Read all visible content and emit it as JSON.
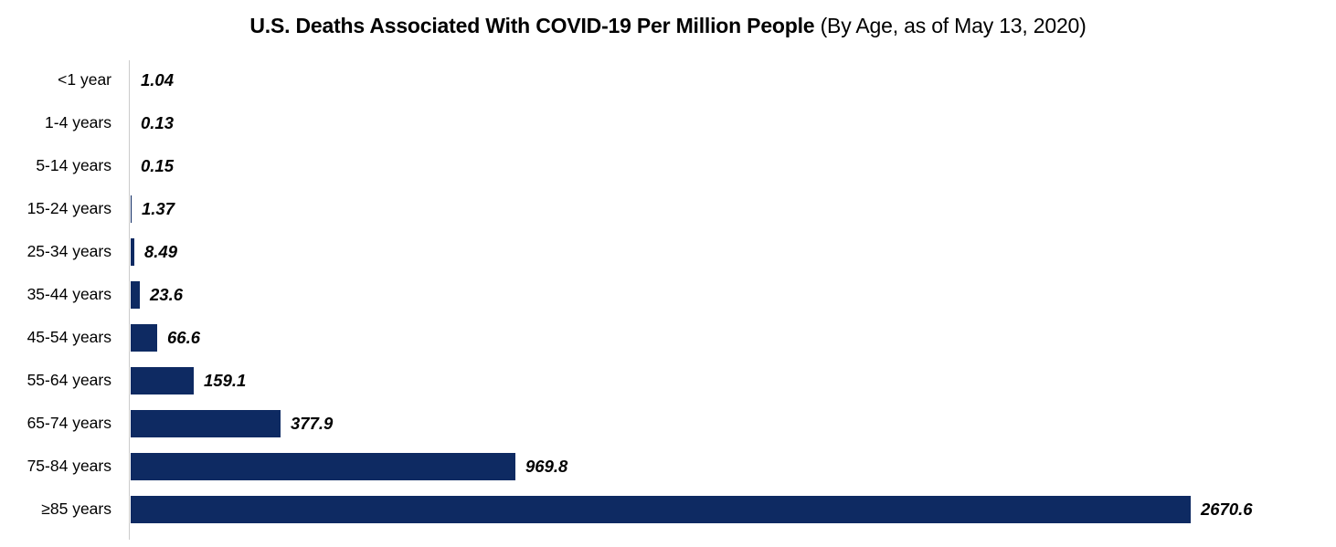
{
  "title": {
    "bold": "U.S. Deaths Associated With COVID-19 Per Million People",
    "regular": " (By Age, as of May 13, 2020)"
  },
  "chart_data": {
    "type": "bar",
    "orientation": "horizontal",
    "title": "U.S. Deaths Associated With COVID-19 Per Million People (By Age, as of May 13, 2020)",
    "categories": [
      "<1 year",
      "1-4 years",
      "5-14 years",
      "15-24 years",
      "25-34 years",
      "35-44 years",
      "45-54 years",
      "55-64 years",
      "65-74 years",
      "75-84 years",
      "≥85 years"
    ],
    "values": [
      1.04,
      0.13,
      0.15,
      1.37,
      8.49,
      23.6,
      66.6,
      159.1,
      377.9,
      969.8,
      2670.6
    ],
    "value_labels": [
      "1.04",
      "0.13",
      "0.15",
      "1.37",
      "8.49",
      "23.6",
      "66.6",
      "159.1",
      "377.9",
      "969.8",
      "2670.6"
    ],
    "xlabel": "",
    "ylabel": "",
    "xlim": [
      0,
      2670.6
    ],
    "grid": false,
    "legend_position": "none",
    "bar_color": "#0e2a62",
    "axis_line_color": "#cccccc",
    "text_color": "#000000"
  }
}
